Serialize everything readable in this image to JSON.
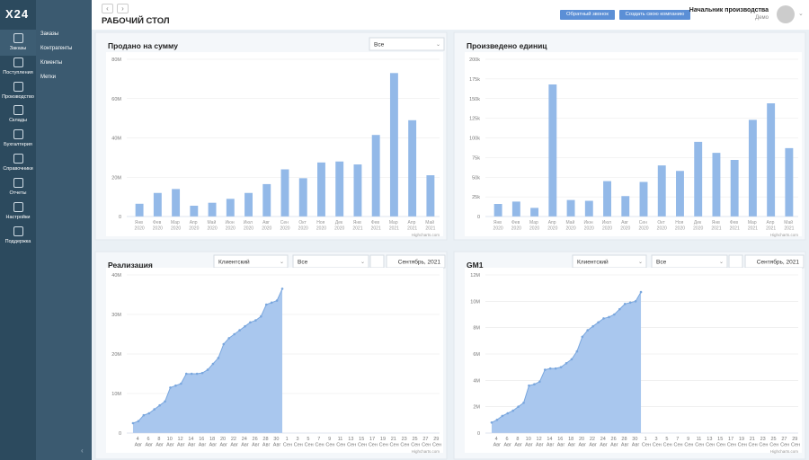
{
  "sidebar": {
    "logo": "Х24",
    "items": [
      "Заказы",
      "Поступления",
      "Производство",
      "Склады",
      "Бухгалтерия",
      "Справочники",
      "Отчеты",
      "Настройки",
      "Поддержка"
    ]
  },
  "submenu": [
    "Заказы",
    "Контрагенты",
    "Клиенты",
    "Метки"
  ],
  "header": {
    "title": "РАБОЧИЙ СТОЛ",
    "buttons": [
      "Обратный звонок",
      "Создать свою компанию"
    ],
    "user": "Начальник производства",
    "company": "Демо"
  },
  "chart_data": [
    {
      "type": "bar",
      "title": "Продано на сумму",
      "filters": [
        "Все"
      ],
      "color": "#93b9e8",
      "credits": "Highcharts.com",
      "categories": [
        "Янв 2020",
        "Фев 2020",
        "Мар 2020",
        "Апр 2020",
        "Май 2020",
        "Июн 2020",
        "Июл 2020",
        "Авг 2020",
        "Сен 2020",
        "Окт 2020",
        "Ноя 2020",
        "Дек 2020",
        "Янв 2021",
        "Фев 2021",
        "Мар 2021",
        "Апр 2021",
        "Май 2021"
      ],
      "values": [
        6500000,
        12000000,
        14000000,
        5500000,
        7000000,
        9000000,
        12000000,
        16500000,
        24000000,
        19500000,
        27500000,
        28000000,
        26500000,
        41500000,
        73000000,
        49000000,
        21000000
      ],
      "ylim": [
        0,
        80000000
      ],
      "yticks": [
        0,
        {
          "value": 20000000,
          "label": "20M"
        },
        {
          "value": 40000000,
          "label": "40M"
        },
        {
          "value": 60000000,
          "label": "60M"
        },
        {
          "value": 80000000,
          "label": "80M"
        }
      ],
      "grid": true
    },
    {
      "type": "bar",
      "title": "Произведено единиц",
      "color": "#93b9e8",
      "credits": "Highcharts.com",
      "categories": [
        "Янв 2020",
        "Фев 2020",
        "Мар 2020",
        "Апр 2020",
        "Май 2020",
        "Июн 2020",
        "Июл 2020",
        "Авг 2020",
        "Сен 2020",
        "Окт 2020",
        "Ноя 2020",
        "Дек 2020",
        "Янв 2021",
        "Фев 2021",
        "Мар 2021",
        "Апр 2021",
        "Май 2021"
      ],
      "values": [
        16000,
        19000,
        11000,
        168000,
        21000,
        20000,
        45000,
        26000,
        44000,
        65000,
        58000,
        95000,
        81000,
        72000,
        123000,
        144000,
        87000
      ],
      "ylim": [
        0,
        200000
      ],
      "yticks": [
        0,
        {
          "value": 25000,
          "label": "25k"
        },
        {
          "value": 50000,
          "label": "50k"
        },
        {
          "value": 75000,
          "label": "75k"
        },
        {
          "value": 100000,
          "label": "100k"
        },
        {
          "value": 125000,
          "label": "125k"
        },
        {
          "value": 150000,
          "label": "150k"
        },
        {
          "value": 175000,
          "label": "175k"
        },
        {
          "value": 200000,
          "label": "200k"
        }
      ],
      "grid": true
    },
    {
      "type": "area",
      "title": "Реализация",
      "filters": [
        "Клиентский",
        "Все",
        "Сентябрь, 2021"
      ],
      "color": "#a9c7ee",
      "line_color": "#7aa7de",
      "credits": "Highcharts.com",
      "categories": [
        null,
        "4 Авг",
        null,
        "6 Авг",
        null,
        "8 Авг",
        null,
        "10 Авг",
        null,
        "12 Авг",
        null,
        "14 Авг",
        null,
        "16 Авг",
        null,
        "18 Авг",
        null,
        "20 Авг",
        null,
        "22 Авг",
        null,
        "24 Авг",
        null,
        "26 Авг",
        null,
        "28 Авг",
        null,
        "30 Авг",
        null,
        "1 Сен",
        null,
        "3 Сен",
        null,
        "5 Сен",
        null,
        "7 Сен",
        null,
        "9 Сен",
        null,
        "11 Сен",
        null,
        "13 Сен",
        null,
        "15 Сен",
        null,
        "17 Сен",
        null,
        "19 Сен",
        null,
        "21 Сен",
        null,
        "23 Сен",
        null,
        "25 Сен",
        null,
        "27 Сен",
        null,
        "29 Сен"
      ],
      "values": [
        2500000,
        3000000,
        4500000,
        5000000,
        6000000,
        7000000,
        8000000,
        11500000,
        12000000,
        12500000,
        15000000,
        15000000,
        15000000,
        15200000,
        16000000,
        17500000,
        19000000,
        22500000,
        24000000,
        25000000,
        26000000,
        27000000,
        28000000,
        28500000,
        29500000,
        32500000,
        33000000,
        33500000,
        36500000,
        null,
        null,
        null,
        null,
        null,
        null,
        null,
        null,
        null,
        null,
        null,
        null,
        null,
        null,
        null,
        null,
        null,
        null,
        null,
        null,
        null,
        null,
        null,
        null,
        null,
        null,
        null,
        null,
        null
      ],
      "ylim": [
        0,
        40000000
      ],
      "yticks": [
        0,
        {
          "value": 10000000,
          "label": "10M"
        },
        {
          "value": 20000000,
          "label": "20M"
        },
        {
          "value": 30000000,
          "label": "30M"
        },
        {
          "value": 40000000,
          "label": "40M"
        }
      ],
      "grid": true
    },
    {
      "type": "area",
      "title": "GM1",
      "filters": [
        "Клиентский",
        "Все",
        "Сентябрь, 2021"
      ],
      "color": "#a9c7ee",
      "line_color": "#7aa7de",
      "credits": "Highcharts.com",
      "categories": [
        null,
        "4 Авг",
        null,
        "6 Авг",
        null,
        "8 Авг",
        null,
        "10 Авг",
        null,
        "12 Авг",
        null,
        "14 Авг",
        null,
        "16 Авг",
        null,
        "18 Авг",
        null,
        "20 Авг",
        null,
        "22 Авг",
        null,
        "24 Авг",
        null,
        "26 Авг",
        null,
        "28 Авг",
        null,
        "30 Авг",
        null,
        "1 Сен",
        null,
        "3 Сен",
        null,
        "5 Сен",
        null,
        "7 Сен",
        null,
        "9 Сен",
        null,
        "11 Сен",
        null,
        "13 Сен",
        null,
        "15 Сен",
        null,
        "17 Сен",
        null,
        "19 Сен",
        null,
        "21 Сен",
        null,
        "23 Сен",
        null,
        "25 Сен",
        null,
        "27 Сен",
        null,
        "29 Сен"
      ],
      "values": [
        800000,
        1000000,
        1300000,
        1500000,
        1700000,
        2000000,
        2300000,
        3600000,
        3700000,
        3900000,
        4800000,
        4900000,
        4900000,
        5000000,
        5300000,
        5600000,
        6200000,
        7300000,
        7800000,
        8100000,
        8400000,
        8700000,
        8800000,
        9000000,
        9400000,
        9800000,
        9900000,
        10000000,
        10700000,
        null,
        null,
        null,
        null,
        null,
        null,
        null,
        null,
        null,
        null,
        null,
        null,
        null,
        null,
        null,
        null,
        null,
        null,
        null,
        null,
        null,
        null,
        null,
        null,
        null,
        null,
        null,
        null,
        null
      ],
      "ylim": [
        0,
        12000000
      ],
      "yticks": [
        0,
        {
          "value": 2000000,
          "label": "2M"
        },
        {
          "value": 4000000,
          "label": "4M"
        },
        {
          "value": 6000000,
          "label": "6M"
        },
        {
          "value": 8000000,
          "label": "8M"
        },
        {
          "value": 10000000,
          "label": "10M"
        },
        {
          "value": 12000000,
          "label": "12M"
        }
      ],
      "grid": true
    }
  ]
}
